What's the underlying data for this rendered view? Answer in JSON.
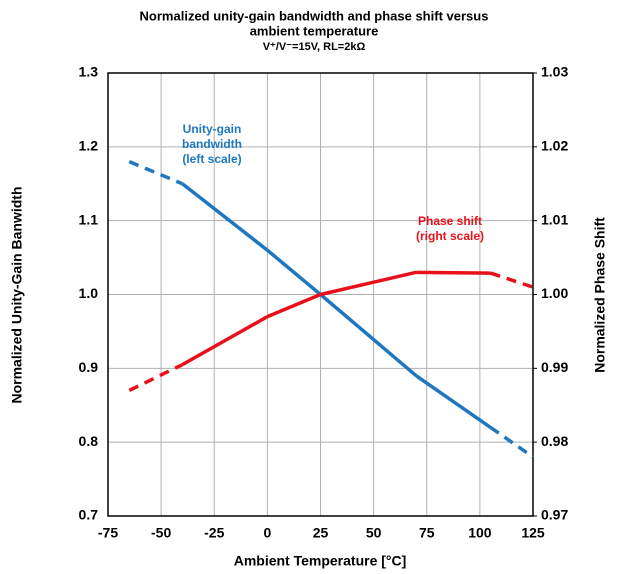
{
  "chart_data": {
    "type": "line",
    "title": [
      "Normalized unity-gain bandwidth and phase shift versus",
      "ambient temperature"
    ],
    "subtitle": "V⁺/V⁻=15V, RL=2kΩ",
    "x_label": "Ambient Temperature [°C]",
    "y_label": "Normalized Unity-Gain Banwidth",
    "y2_label": "Normalized Phase Shift",
    "xlim": [
      -75,
      125
    ],
    "xticks": [
      -75,
      -50,
      -25,
      0,
      25,
      50,
      75,
      100,
      125
    ],
    "ylim": [
      0.7,
      1.3
    ],
    "yticks": [
      0.7,
      0.8,
      0.9,
      {
        "value": 1,
        "label": "1.0"
      },
      1.1,
      1.2,
      1.3
    ],
    "y2lim": [
      0.97,
      1.03
    ],
    "y2ticks": [
      0.97,
      0.98,
      0.99,
      {
        "value": 1,
        "label": "1.00"
      },
      1.01,
      1.02,
      1.03
    ],
    "grid": true,
    "series": [
      {
        "label_lines": [
          "Unity-gain",
          "bandwidth",
          "(left scale)"
        ],
        "color": "#1f77c0",
        "axis": "y",
        "x": [
          -65,
          -40,
          0,
          25,
          70,
          105,
          125
        ],
        "values": [
          1.18,
          1.15,
          1.06,
          1.0,
          0.89,
          0.82,
          0.78
        ],
        "segment_dashed": [
          true,
          false,
          false,
          false,
          false,
          true
        ]
      },
      {
        "label_lines": [
          "Phase shift",
          "(right scale)"
        ],
        "color": "#e8101a",
        "axis": "y2",
        "x": [
          -65,
          -40,
          0,
          25,
          70,
          105,
          125
        ],
        "values": [
          0.987,
          0.9905,
          0.997,
          1.0,
          1.003,
          1.0029,
          1.001
        ],
        "segment_dashed": [
          true,
          false,
          false,
          false,
          false,
          true
        ]
      }
    ]
  }
}
